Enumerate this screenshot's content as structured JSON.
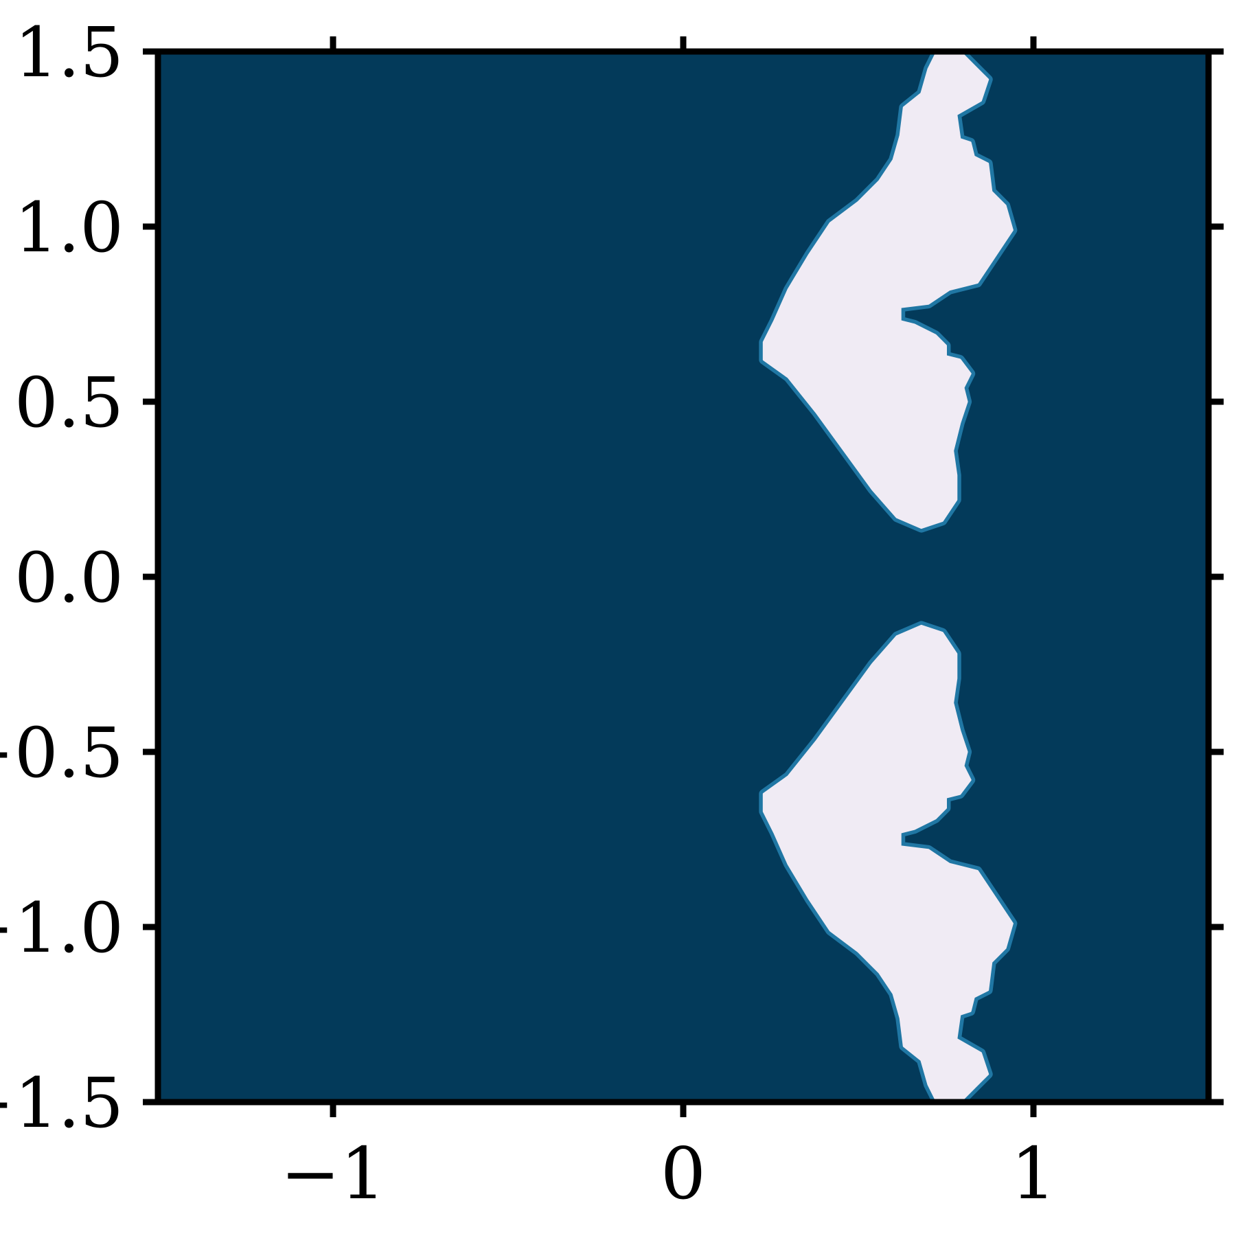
{
  "chart_data": {
    "type": "heatmap",
    "title": "",
    "xlabel": "",
    "ylabel": "",
    "xlim": [
      -1.5,
      1.5
    ],
    "ylim": [
      -1.5,
      1.5
    ],
    "x_ticks": [
      -1,
      0,
      1
    ],
    "x_tick_labels": [
      "−1",
      "0",
      "1"
    ],
    "y_ticks": [
      1.5,
      1.0,
      0.5,
      0.0,
      -0.5,
      -1.0,
      -1.5
    ],
    "y_tick_labels": [
      "1.5",
      "1.0",
      "0.5",
      "0.0",
      "−0.5",
      "−1.0",
      "−1.5"
    ],
    "grid": false,
    "legend": "none",
    "background_value_color": "#033a5a",
    "region_color": "#f0ebf4",
    "edge_color": "#2b8cbe",
    "regions": [
      {
        "symmetric_about_y0": true,
        "boundary_upper": [
          [
            0.23,
            0.62
          ],
          [
            0.3,
            0.57
          ],
          [
            0.38,
            0.47
          ],
          [
            0.46,
            0.36
          ],
          [
            0.54,
            0.25
          ],
          [
            0.61,
            0.17
          ],
          [
            0.68,
            0.14
          ],
          [
            0.74,
            0.16
          ],
          [
            0.78,
            0.22
          ],
          [
            0.78,
            0.29
          ],
          [
            0.77,
            0.36
          ],
          [
            0.79,
            0.44
          ],
          [
            0.81,
            0.5
          ],
          [
            0.8,
            0.54
          ],
          [
            0.82,
            0.58
          ],
          [
            0.79,
            0.62
          ],
          [
            0.75,
            0.63
          ],
          [
            0.75,
            0.66
          ],
          [
            0.72,
            0.69
          ],
          [
            0.66,
            0.72
          ],
          [
            0.62,
            0.73
          ],
          [
            0.62,
            0.77
          ],
          [
            0.7,
            0.78
          ],
          [
            0.76,
            0.82
          ],
          [
            0.84,
            0.84
          ],
          [
            0.9,
            0.93
          ],
          [
            0.94,
            0.99
          ],
          [
            0.92,
            1.06
          ],
          [
            0.88,
            1.1
          ],
          [
            0.87,
            1.18
          ],
          [
            0.83,
            1.2
          ],
          [
            0.82,
            1.24
          ],
          [
            0.79,
            1.25
          ],
          [
            0.78,
            1.32
          ],
          [
            0.85,
            1.36
          ],
          [
            0.87,
            1.42
          ],
          [
            0.83,
            1.46
          ],
          [
            0.8,
            1.49
          ],
          [
            0.72,
            1.49
          ],
          [
            0.7,
            1.45
          ],
          [
            0.68,
            1.38
          ],
          [
            0.63,
            1.34
          ],
          [
            0.62,
            1.26
          ],
          [
            0.6,
            1.19
          ],
          [
            0.56,
            1.13
          ],
          [
            0.5,
            1.07
          ],
          [
            0.42,
            1.01
          ],
          [
            0.36,
            0.92
          ],
          [
            0.3,
            0.82
          ],
          [
            0.26,
            0.73
          ],
          [
            0.23,
            0.67
          ]
        ]
      }
    ]
  }
}
